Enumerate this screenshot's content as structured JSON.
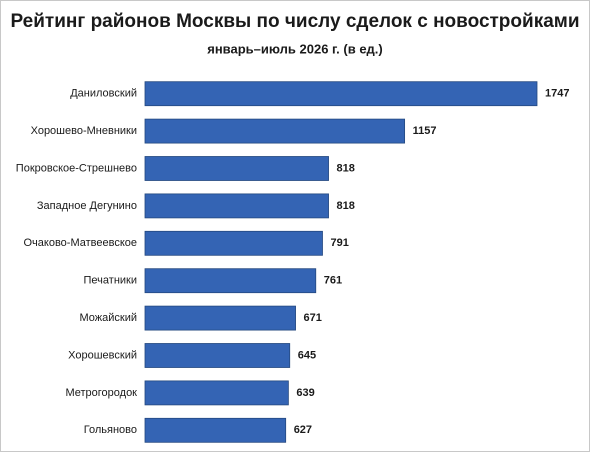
{
  "chart_data": {
    "type": "bar",
    "title": "Рейтинг районов Москвы по числу сделок с новостройками",
    "subtitle": "январь–июль 2026 г. (в ед.)",
    "categories": [
      "Даниловский",
      "Хорошево-Мневники",
      "Покровское-Стрешнево",
      "Западное Дегунино",
      "Очаково-Матвеевское",
      "Печатники",
      "Можайский",
      "Хорошевский",
      "Метрогородок",
      "Гольяново"
    ],
    "values": [
      1747,
      1157,
      818,
      818,
      791,
      761,
      671,
      645,
      639,
      627
    ],
    "color": "#3464b4"
  }
}
